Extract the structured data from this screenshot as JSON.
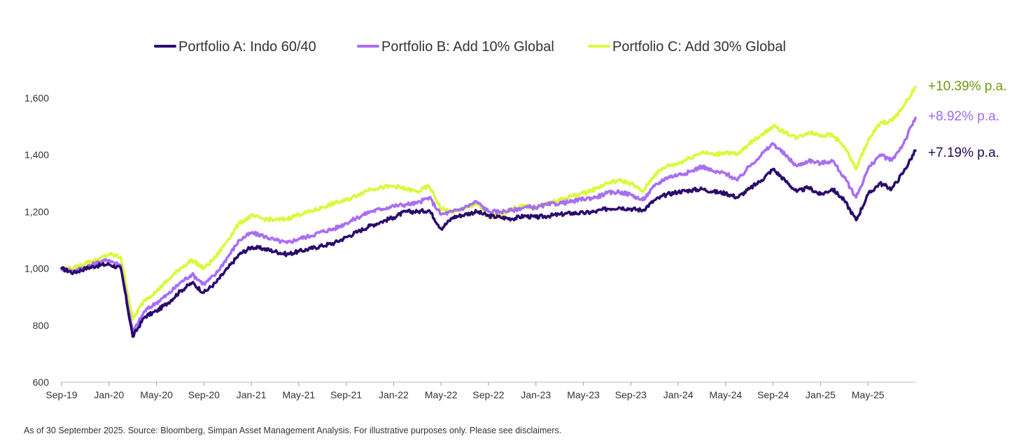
{
  "footnote": "As of 30 September 2025. Source: Bloomberg, Simpan Asset Management Analysis. For illustrative purposes only. Please see disclaimers.",
  "chart_data": {
    "type": "line",
    "title": "",
    "xlabel": "",
    "ylabel": "",
    "ylim": [
      600,
      1640
    ],
    "yticks": [
      600,
      800,
      1000,
      1200,
      1400,
      1600
    ],
    "ytick_labels": [
      "600",
      "800",
      "1,000",
      "1,200",
      "1,400",
      "1,600"
    ],
    "grid": false,
    "legend_position": "top-center",
    "x_start_month_index": 0,
    "x_end_month_index": 72,
    "xtick_labels": [
      "Sep-19",
      "Jan-20",
      "May-20",
      "Sep-20",
      "Jan-21",
      "May-21",
      "Sep-21",
      "Jan-22",
      "May-22",
      "Sep-22",
      "Jan-23",
      "May-23",
      "Sep-23",
      "Jan-24",
      "May-24",
      "Sep-24",
      "Jan-25",
      "May-25"
    ],
    "xtick_month_index": [
      0,
      4,
      8,
      12,
      16,
      20,
      24,
      28,
      32,
      36,
      40,
      44,
      48,
      52,
      56,
      60,
      64,
      68
    ],
    "series": [
      {
        "name": "Portfolio A: Indo 60/40",
        "color": "#2a0a6b",
        "end_label": "+7.19% p.a.",
        "end_label_color": "#1f0a55",
        "points": [
          [
            0,
            1000
          ],
          [
            1,
            985
          ],
          [
            2,
            1000
          ],
          [
            3,
            1010
          ],
          [
            4,
            1015
          ],
          [
            5,
            1000
          ],
          [
            6,
            760
          ],
          [
            7,
            830
          ],
          [
            8,
            850
          ],
          [
            9,
            880
          ],
          [
            10,
            920
          ],
          [
            11,
            950
          ],
          [
            12,
            915
          ],
          [
            13,
            950
          ],
          [
            14,
            1000
          ],
          [
            15,
            1050
          ],
          [
            16,
            1075
          ],
          [
            17,
            1070
          ],
          [
            18,
            1060
          ],
          [
            19,
            1050
          ],
          [
            20,
            1060
          ],
          [
            21,
            1070
          ],
          [
            22,
            1080
          ],
          [
            23,
            1090
          ],
          [
            24,
            1110
          ],
          [
            25,
            1130
          ],
          [
            26,
            1150
          ],
          [
            27,
            1165
          ],
          [
            28,
            1180
          ],
          [
            29,
            1200
          ],
          [
            30,
            1200
          ],
          [
            31,
            1205
          ],
          [
            32,
            1140
          ],
          [
            33,
            1180
          ],
          [
            34,
            1190
          ],
          [
            35,
            1200
          ],
          [
            36,
            1185
          ],
          [
            37,
            1180
          ],
          [
            38,
            1175
          ],
          [
            39,
            1185
          ],
          [
            40,
            1180
          ],
          [
            41,
            1185
          ],
          [
            42,
            1190
          ],
          [
            43,
            1195
          ],
          [
            44,
            1195
          ],
          [
            45,
            1200
          ],
          [
            46,
            1210
          ],
          [
            47,
            1215
          ],
          [
            48,
            1210
          ],
          [
            49,
            1205
          ],
          [
            50,
            1240
          ],
          [
            51,
            1260
          ],
          [
            52,
            1270
          ],
          [
            53,
            1275
          ],
          [
            54,
            1280
          ],
          [
            55,
            1270
          ],
          [
            56,
            1265
          ],
          [
            57,
            1250
          ],
          [
            58,
            1280
          ],
          [
            59,
            1310
          ],
          [
            60,
            1350
          ],
          [
            61,
            1310
          ],
          [
            62,
            1270
          ],
          [
            63,
            1285
          ],
          [
            64,
            1260
          ],
          [
            65,
            1280
          ],
          [
            66,
            1240
          ],
          [
            67,
            1170
          ],
          [
            68,
            1260
          ],
          [
            69,
            1300
          ],
          [
            70,
            1280
          ],
          [
            71,
            1340
          ],
          [
            72,
            1415
          ]
        ]
      },
      {
        "name": "Portfolio B: Add 10% Global",
        "color": "#a86ef2",
        "end_label": "+8.92% p.a.",
        "end_label_color": "#a068ee",
        "points": [
          [
            0,
            1000
          ],
          [
            1,
            990
          ],
          [
            2,
            1005
          ],
          [
            3,
            1020
          ],
          [
            4,
            1030
          ],
          [
            5,
            1010
          ],
          [
            6,
            775
          ],
          [
            7,
            850
          ],
          [
            8,
            880
          ],
          [
            9,
            910
          ],
          [
            10,
            950
          ],
          [
            11,
            980
          ],
          [
            12,
            945
          ],
          [
            13,
            980
          ],
          [
            14,
            1040
          ],
          [
            15,
            1100
          ],
          [
            16,
            1125
          ],
          [
            17,
            1115
          ],
          [
            18,
            1100
          ],
          [
            19,
            1090
          ],
          [
            20,
            1105
          ],
          [
            21,
            1115
          ],
          [
            22,
            1130
          ],
          [
            23,
            1140
          ],
          [
            24,
            1160
          ],
          [
            25,
            1180
          ],
          [
            26,
            1200
          ],
          [
            27,
            1210
          ],
          [
            28,
            1220
          ],
          [
            29,
            1225
          ],
          [
            30,
            1230
          ],
          [
            31,
            1250
          ],
          [
            32,
            1190
          ],
          [
            33,
            1200
          ],
          [
            34,
            1215
          ],
          [
            35,
            1235
          ],
          [
            36,
            1200
          ],
          [
            37,
            1200
          ],
          [
            38,
            1205
          ],
          [
            39,
            1215
          ],
          [
            40,
            1215
          ],
          [
            41,
            1225
          ],
          [
            42,
            1230
          ],
          [
            43,
            1235
          ],
          [
            44,
            1245
          ],
          [
            45,
            1250
          ],
          [
            46,
            1265
          ],
          [
            47,
            1270
          ],
          [
            48,
            1260
          ],
          [
            49,
            1240
          ],
          [
            50,
            1290
          ],
          [
            51,
            1320
          ],
          [
            52,
            1330
          ],
          [
            53,
            1340
          ],
          [
            54,
            1360
          ],
          [
            55,
            1340
          ],
          [
            56,
            1335
          ],
          [
            57,
            1310
          ],
          [
            58,
            1360
          ],
          [
            59,
            1400
          ],
          [
            60,
            1440
          ],
          [
            61,
            1400
          ],
          [
            62,
            1360
          ],
          [
            63,
            1380
          ],
          [
            64,
            1370
          ],
          [
            65,
            1380
          ],
          [
            66,
            1320
          ],
          [
            67,
            1250
          ],
          [
            68,
            1350
          ],
          [
            69,
            1400
          ],
          [
            70,
            1380
          ],
          [
            71,
            1440
          ],
          [
            72,
            1530
          ]
        ]
      },
      {
        "name": "Portfolio C: Add 30% Global",
        "color": "#d8fa3c",
        "end_label": "+10.39% p.a.",
        "end_label_color": "#6e9a10",
        "points": [
          [
            0,
            1000
          ],
          [
            1,
            1000
          ],
          [
            2,
            1020
          ],
          [
            3,
            1030
          ],
          [
            4,
            1050
          ],
          [
            5,
            1040
          ],
          [
            6,
            820
          ],
          [
            7,
            890
          ],
          [
            8,
            920
          ],
          [
            9,
            960
          ],
          [
            10,
            1000
          ],
          [
            11,
            1030
          ],
          [
            12,
            1000
          ],
          [
            13,
            1040
          ],
          [
            14,
            1100
          ],
          [
            15,
            1160
          ],
          [
            16,
            1185
          ],
          [
            17,
            1175
          ],
          [
            18,
            1170
          ],
          [
            19,
            1175
          ],
          [
            20,
            1190
          ],
          [
            21,
            1200
          ],
          [
            22,
            1215
          ],
          [
            23,
            1230
          ],
          [
            24,
            1240
          ],
          [
            25,
            1260
          ],
          [
            26,
            1280
          ],
          [
            27,
            1285
          ],
          [
            28,
            1290
          ],
          [
            29,
            1280
          ],
          [
            30,
            1270
          ],
          [
            31,
            1290
          ],
          [
            32,
            1210
          ],
          [
            33,
            1200
          ],
          [
            34,
            1210
          ],
          [
            35,
            1230
          ],
          [
            36,
            1180
          ],
          [
            37,
            1190
          ],
          [
            38,
            1210
          ],
          [
            39,
            1220
          ],
          [
            40,
            1215
          ],
          [
            41,
            1230
          ],
          [
            42,
            1240
          ],
          [
            43,
            1255
          ],
          [
            44,
            1265
          ],
          [
            45,
            1280
          ],
          [
            46,
            1300
          ],
          [
            47,
            1310
          ],
          [
            48,
            1300
          ],
          [
            49,
            1270
          ],
          [
            50,
            1330
          ],
          [
            51,
            1360
          ],
          [
            52,
            1370
          ],
          [
            53,
            1390
          ],
          [
            54,
            1410
          ],
          [
            55,
            1400
          ],
          [
            56,
            1410
          ],
          [
            57,
            1400
          ],
          [
            58,
            1440
          ],
          [
            59,
            1470
          ],
          [
            60,
            1500
          ],
          [
            61,
            1480
          ],
          [
            62,
            1460
          ],
          [
            63,
            1480
          ],
          [
            64,
            1470
          ],
          [
            65,
            1470
          ],
          [
            66,
            1430
          ],
          [
            67,
            1350
          ],
          [
            68,
            1450
          ],
          [
            69,
            1510
          ],
          [
            70,
            1520
          ],
          [
            71,
            1570
          ],
          [
            72,
            1640
          ]
        ]
      }
    ]
  }
}
